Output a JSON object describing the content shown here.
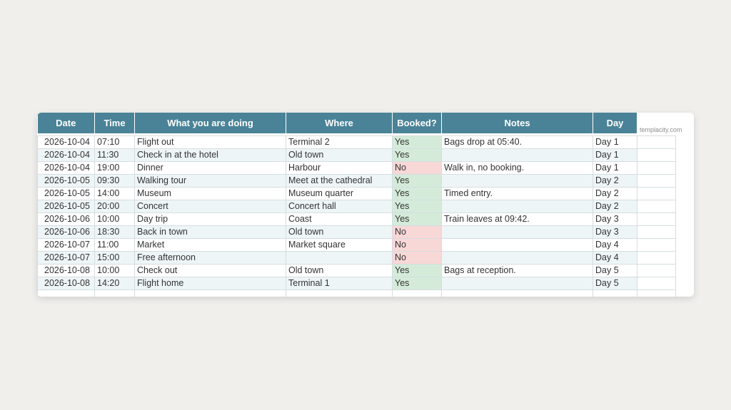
{
  "watermark": "templacity.com",
  "colors": {
    "header_bg": "#4a8397",
    "yes_bg": "#d4ebd9",
    "no_bg": "#f8d7d7",
    "stripe_bg": "#eef5f7"
  },
  "table": {
    "headers": [
      "Date",
      "Time",
      "What you are doing",
      "Where",
      "Booked?",
      "Notes",
      "Day"
    ],
    "rows": [
      {
        "date": "2026-10-04",
        "time": "07:10",
        "activity": "Flight out",
        "where": "Terminal 2",
        "booked": "Yes",
        "notes": "Bags drop at 05:40.",
        "day": "Day 1"
      },
      {
        "date": "2026-10-04",
        "time": "11:30",
        "activity": "Check in at the hotel",
        "where": "Old town",
        "booked": "Yes",
        "notes": "",
        "day": "Day 1"
      },
      {
        "date": "2026-10-04",
        "time": "19:00",
        "activity": "Dinner",
        "where": "Harbour",
        "booked": "No",
        "notes": "Walk in, no booking.",
        "day": "Day 1"
      },
      {
        "date": "2026-10-05",
        "time": "09:30",
        "activity": "Walking tour",
        "where": "Meet at the cathedral",
        "booked": "Yes",
        "notes": "",
        "day": "Day 2"
      },
      {
        "date": "2026-10-05",
        "time": "14:00",
        "activity": "Museum",
        "where": "Museum quarter",
        "booked": "Yes",
        "notes": "Timed entry.",
        "day": "Day 2"
      },
      {
        "date": "2026-10-05",
        "time": "20:00",
        "activity": "Concert",
        "where": "Concert hall",
        "booked": "Yes",
        "notes": "",
        "day": "Day 2"
      },
      {
        "date": "2026-10-06",
        "time": "10:00",
        "activity": "Day trip",
        "where": "Coast",
        "booked": "Yes",
        "notes": "Train leaves at 09:42.",
        "day": "Day 3"
      },
      {
        "date": "2026-10-06",
        "time": "18:30",
        "activity": "Back in town",
        "where": "Old town",
        "booked": "No",
        "notes": "",
        "day": "Day 3"
      },
      {
        "date": "2026-10-07",
        "time": "11:00",
        "activity": "Market",
        "where": "Market square",
        "booked": "No",
        "notes": "",
        "day": "Day 4"
      },
      {
        "date": "2026-10-07",
        "time": "15:00",
        "activity": "Free afternoon",
        "where": "",
        "booked": "No",
        "notes": "",
        "day": "Day 4"
      },
      {
        "date": "2026-10-08",
        "time": "10:00",
        "activity": "Check out",
        "where": "Old town",
        "booked": "Yes",
        "notes": "Bags at reception.",
        "day": "Day 5"
      },
      {
        "date": "2026-10-08",
        "time": "14:20",
        "activity": "Flight home",
        "where": "Terminal 1",
        "booked": "Yes",
        "notes": "",
        "day": "Day 5"
      }
    ]
  }
}
